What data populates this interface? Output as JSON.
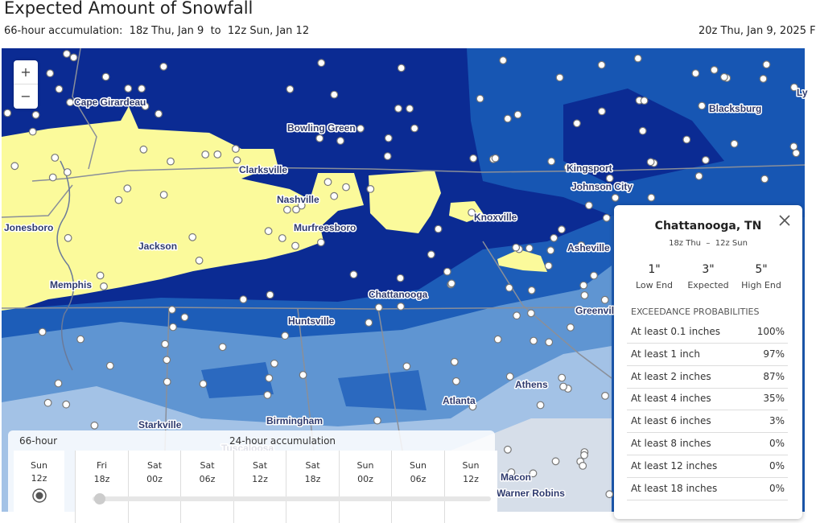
{
  "header": {
    "title": "Expected Amount of Snowfall",
    "subtitle_label": "66-hour accumulation:",
    "start": "18z Thu, Jan 9",
    "to": "to",
    "end": "12z Sun, Jan 12",
    "issued": "20z Thu, Jan 9, 2025 F"
  },
  "zoom": {
    "in": "+",
    "out": "−"
  },
  "map_labels": [
    "Cape Girardeau",
    "Bowling Green",
    "Clarksville",
    "Nashville",
    "Kingsport",
    "Johnson City",
    "Blacksburg",
    "Ly",
    "Jonesboro",
    "Murfreesboro",
    "Knoxville",
    "Jackson",
    "Asheville",
    "Memphis",
    "Chattanooga",
    "Greenvill",
    "Huntsville",
    "Athens",
    "Atlanta",
    "Starkville",
    "Birmingham",
    "Tuscaloosa",
    "Macon",
    "Warner Robins"
  ],
  "popup": {
    "title": "Chattanooga, TN",
    "period_start": "18z Thu",
    "period_sep": "–",
    "period_end": "12z Sun",
    "amounts": [
      {
        "value": "1\"",
        "label": "Low End"
      },
      {
        "value": "3\"",
        "label": "Expected"
      },
      {
        "value": "5\"",
        "label": "High End"
      }
    ],
    "section": "EXCEEDANCE PROBABILITIES",
    "rows": [
      [
        "At least 0.1 inches",
        "100%"
      ],
      [
        "At least 1 inch",
        "97%"
      ],
      [
        "At least 2 inches",
        "87%"
      ],
      [
        "At least 4 inches",
        "35%"
      ],
      [
        "At least 6 inches",
        "3%"
      ],
      [
        "At least 8 inches",
        "0%"
      ],
      [
        "At least 12 inches",
        "0%"
      ],
      [
        "At least 18 inches",
        "0%"
      ]
    ]
  },
  "timeline": {
    "total_label": "66-hour",
    "daily_label": "24-hour accumulation",
    "total_slot": {
      "day": "Sun",
      "time": "12z"
    },
    "slots": [
      {
        "day": "Fri",
        "time": "18z"
      },
      {
        "day": "Sat",
        "time": "00z"
      },
      {
        "day": "Sat",
        "time": "06z"
      },
      {
        "day": "Sat",
        "time": "12z"
      },
      {
        "day": "Sat",
        "time": "18z"
      },
      {
        "day": "Sun",
        "time": "00z"
      },
      {
        "day": "Sun",
        "time": "06z"
      },
      {
        "day": "Sun",
        "time": "12z"
      }
    ]
  }
}
